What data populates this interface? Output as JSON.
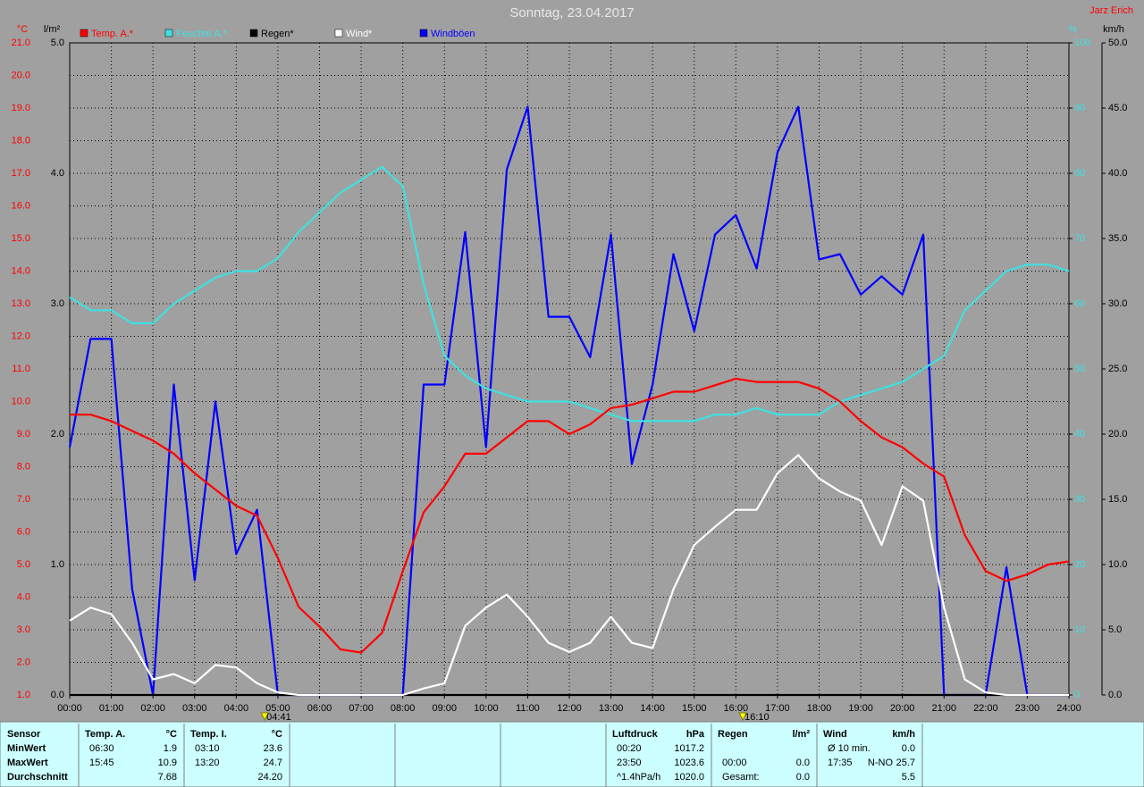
{
  "chart_data": {
    "type": "line",
    "title": "Sonntag, 23.04.2017",
    "author": "Jarz Erich",
    "x": [
      0,
      0.5,
      1,
      1.5,
      2,
      2.5,
      3,
      3.5,
      4,
      4.5,
      5,
      5.5,
      6,
      6.5,
      7,
      7.5,
      8,
      8.5,
      9,
      9.5,
      10,
      10.5,
      11,
      11.5,
      12,
      12.5,
      13,
      13.5,
      14,
      14.5,
      15,
      15.5,
      16,
      16.5,
      17,
      17.5,
      18,
      18.5,
      19,
      19.5,
      20,
      20.5,
      21,
      21.5,
      22,
      22.5,
      23,
      23.5,
      24
    ],
    "xlim": [
      0,
      24
    ],
    "xticks": [
      {
        "value": 0,
        "label": "00:00"
      },
      {
        "value": 1,
        "label": "01:00"
      },
      {
        "value": 2,
        "label": "02:00"
      },
      {
        "value": 3,
        "label": "03:00"
      },
      {
        "value": 4,
        "label": "04:00"
      },
      {
        "value": 5,
        "label": "05:00"
      },
      {
        "value": 6,
        "label": "06:00"
      },
      {
        "value": 7,
        "label": "07:00"
      },
      {
        "value": 8,
        "label": "08:00"
      },
      {
        "value": 9,
        "label": "09:00"
      },
      {
        "value": 10,
        "label": "10:00"
      },
      {
        "value": 11,
        "label": "11:00"
      },
      {
        "value": 12,
        "label": "12:00"
      },
      {
        "value": 13,
        "label": "13:00"
      },
      {
        "value": 14,
        "label": "14:00"
      },
      {
        "value": 15,
        "label": "15:00"
      },
      {
        "value": 16,
        "label": "16:00"
      },
      {
        "value": 17,
        "label": "17:00"
      },
      {
        "value": 18,
        "label": "18:00"
      },
      {
        "value": 19,
        "label": "19:00"
      },
      {
        "value": 20,
        "label": "20:00"
      },
      {
        "value": 21,
        "label": "21:00"
      },
      {
        "value": 22,
        "label": "22:00"
      },
      {
        "value": 23,
        "label": "23:00"
      },
      {
        "value": 24,
        "label": "24:00"
      }
    ],
    "grid": true,
    "axes": [
      {
        "id": "temp",
        "label": "°C",
        "color": "#ff0000",
        "lim": [
          1,
          21
        ],
        "ticks": [
          {
            "value": 1,
            "label": "1.0"
          },
          {
            "value": 2,
            "label": "2.0"
          },
          {
            "value": 3,
            "label": "3.0"
          },
          {
            "value": 4,
            "label": "4.0"
          },
          {
            "value": 5,
            "label": "5.0"
          },
          {
            "value": 6,
            "label": "6.0"
          },
          {
            "value": 7,
            "label": "7.0"
          },
          {
            "value": 8,
            "label": "8.0"
          },
          {
            "value": 9,
            "label": "9.0"
          },
          {
            "value": 10,
            "label": "10.0"
          },
          {
            "value": 11,
            "label": "11.0"
          },
          {
            "value": 12,
            "label": "12.0"
          },
          {
            "value": 13,
            "label": "13.0"
          },
          {
            "value": 14,
            "label": "14.0"
          },
          {
            "value": 15,
            "label": "15.0"
          },
          {
            "value": 16,
            "label": "16.0"
          },
          {
            "value": 17,
            "label": "17.0"
          },
          {
            "value": 18,
            "label": "18.0"
          },
          {
            "value": 19,
            "label": "19.0"
          },
          {
            "value": 20,
            "label": "20.0"
          },
          {
            "value": 21,
            "label": "21.0"
          }
        ]
      },
      {
        "id": "rain",
        "label": "l/m²",
        "color": "#000000",
        "lim": [
          0,
          5
        ],
        "ticks": [
          {
            "value": 0,
            "label": "0.0"
          },
          {
            "value": 1,
            "label": "1.0"
          },
          {
            "value": 2,
            "label": "2.0"
          },
          {
            "value": 3,
            "label": "3.0"
          },
          {
            "value": 4,
            "label": "4.0"
          },
          {
            "value": 5,
            "label": "5.0"
          }
        ]
      },
      {
        "id": "humidity",
        "label": "%",
        "color": "#40e0e0",
        "lim": [
          0,
          100
        ],
        "ticks": [
          0,
          10,
          20,
          30,
          40,
          50,
          60,
          70,
          80,
          90,
          100
        ]
      },
      {
        "id": "wind",
        "label": "km/h",
        "color": "#000000",
        "lim": [
          0,
          50
        ],
        "ticks": [
          {
            "value": 0,
            "label": "0.0"
          },
          {
            "value": 5,
            "label": "5.0"
          },
          {
            "value": 10,
            "label": "10.0"
          },
          {
            "value": 15,
            "label": "15.0"
          },
          {
            "value": 20,
            "label": "20.0"
          },
          {
            "value": 25,
            "label": "25.0"
          },
          {
            "value": 30,
            "label": "30.0"
          },
          {
            "value": 35,
            "label": "35.0"
          },
          {
            "value": 40,
            "label": "40.0"
          },
          {
            "value": 45,
            "label": "45.0"
          },
          {
            "value": 50,
            "label": "50.0"
          }
        ]
      }
    ],
    "series": [
      {
        "name": "Temp. A.*",
        "color": "#ff0000",
        "axis": "temp",
        "values": [
          9.6,
          9.6,
          9.4,
          9.1,
          8.8,
          8.4,
          7.8,
          7.3,
          6.8,
          6.5,
          5.2,
          3.7,
          3.1,
          2.4,
          2.3,
          2.9,
          4.8,
          6.6,
          7.4,
          8.4,
          8.4,
          8.9,
          9.4,
          9.4,
          9.0,
          9.3,
          9.8,
          9.9,
          10.1,
          10.3,
          10.3,
          10.5,
          10.7,
          10.6,
          10.6,
          10.6,
          10.4,
          10.0,
          9.4,
          8.9,
          8.6,
          8.1,
          7.7,
          5.9,
          4.8,
          4.5,
          4.7,
          5.0,
          5.1
        ]
      },
      {
        "name": "Feuchte A.*",
        "color": "#40e0e0",
        "axis": "humidity",
        "values": [
          61,
          59,
          59,
          57,
          57,
          60,
          62,
          64,
          65,
          65,
          67,
          71,
          74,
          77,
          79,
          81,
          78,
          63,
          52,
          49,
          47,
          46,
          45,
          45,
          45,
          44,
          43,
          42,
          42,
          42,
          42,
          43,
          43,
          44,
          43,
          43,
          43,
          45,
          46,
          47,
          48,
          50,
          52,
          59,
          62,
          65,
          66,
          66,
          65
        ]
      },
      {
        "name": "Regen*",
        "color": "#000000",
        "axis": "rain",
        "values": [
          0,
          0,
          0,
          0,
          0,
          0,
          0,
          0,
          0,
          0,
          0,
          0,
          0,
          0,
          0,
          0,
          0,
          0,
          0,
          0,
          0,
          0,
          0,
          0,
          0,
          0,
          0,
          0,
          0,
          0,
          0,
          0,
          0,
          0,
          0,
          0,
          0,
          0,
          0,
          0,
          0,
          0,
          0,
          0,
          0,
          0,
          0,
          0,
          0
        ]
      },
      {
        "name": "Wind*",
        "color": "#ffffff",
        "axis": "wind",
        "values": [
          5.7,
          6.7,
          6.2,
          4.0,
          1.2,
          1.6,
          0.9,
          2.3,
          2.1,
          0.9,
          0.2,
          0,
          0,
          0,
          0,
          0,
          0,
          0.5,
          0.9,
          5.3,
          6.7,
          7.7,
          6.0,
          4.0,
          3.3,
          4.0,
          6.0,
          4.0,
          3.6,
          8.1,
          11.5,
          12.9,
          14.2,
          14.2,
          17.0,
          18.4,
          16.6,
          15.6,
          14.9,
          11.5,
          16.0,
          14.9,
          6.7,
          1.2,
          0.2,
          0,
          0,
          0,
          0
        ]
      },
      {
        "name": "Windböen",
        "color": "#0000ff",
        "axis": "wind",
        "values": [
          19.0,
          27.3,
          27.3,
          8.1,
          0,
          23.8,
          8.8,
          22.5,
          10.8,
          14.2,
          0,
          0,
          0,
          0,
          0,
          0,
          0,
          23.8,
          23.8,
          35.5,
          19.0,
          40.3,
          45.1,
          29.0,
          29.0,
          25.9,
          35.3,
          17.7,
          23.8,
          33.8,
          27.9,
          35.3,
          36.8,
          32.7,
          41.6,
          45.1,
          33.4,
          33.8,
          30.7,
          32.1,
          30.7,
          35.3,
          0,
          0,
          0,
          9.8,
          0,
          0,
          0
        ]
      }
    ],
    "annotations": [
      {
        "x": 4.6833,
        "label": "04:41"
      },
      {
        "x": 16.1667,
        "label": "16:10"
      }
    ]
  },
  "table": {
    "row_header": "Sensor",
    "row_labels": [
      "MinWert",
      "MaxWert",
      "Durchschnitt"
    ],
    "blocks": [
      {
        "header": "Temp. A.",
        "unit": "°C",
        "rows": [
          {
            "left": "06:30",
            "right": "1.9"
          },
          {
            "left": "15:45",
            "right": "10.9"
          },
          {
            "right": "7.68"
          }
        ]
      },
      {
        "header": "Temp. I.",
        "unit": "°C",
        "rows": [
          {
            "left": "03:10",
            "right": "23.6"
          },
          {
            "left": "13:20",
            "right": "24.7"
          },
          {
            "right": "24.20"
          }
        ]
      },
      null,
      null,
      null,
      {
        "header": "Luftdruck",
        "unit": "hPa",
        "rows": [
          {
            "left": "00:20",
            "right": "1017.2"
          },
          {
            "left": "23:50",
            "right": "1023.6"
          },
          {
            "left": "^1.4hPa/h",
            "right": "1020.0"
          }
        ]
      },
      {
        "header": "Regen",
        "unit": "l/m²",
        "rows": [
          null,
          {
            "left": "00:00",
            "right": "0.0"
          },
          {
            "left": "Gesamt:",
            "right": "0.0"
          }
        ]
      },
      {
        "header": "Wind",
        "unit": "km/h",
        "rows": [
          {
            "left": "Ø 10 min.",
            "right": "0.0"
          },
          {
            "left": "17:35",
            "mid": "N-NO",
            "right": "25.7"
          },
          {
            "right": "5.5"
          }
        ]
      }
    ]
  }
}
